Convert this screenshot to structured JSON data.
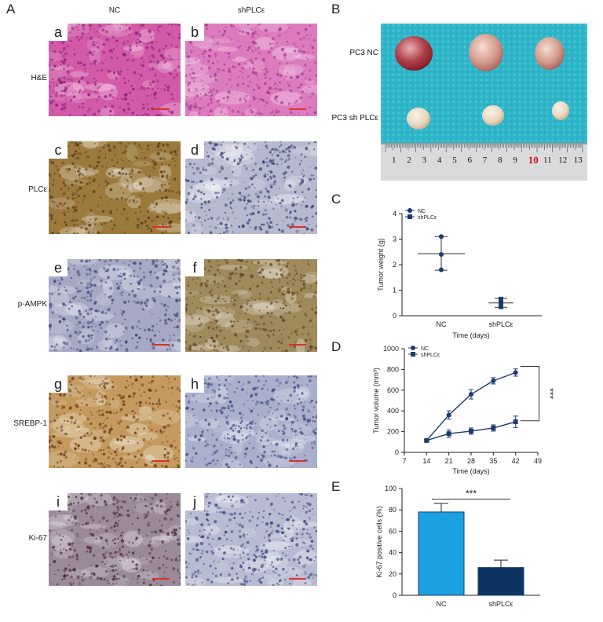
{
  "panel_labels": {
    "A": "A",
    "B": "B",
    "C": "C",
    "D": "D",
    "E": "E"
  },
  "column_headers": {
    "nc": "NC",
    "sh": "shPLCε"
  },
  "rows": [
    {
      "label": "H&E",
      "left": "a",
      "right": "b",
      "colors": {
        "left_base": "#d25aa8",
        "right_base": "#dc7cbe",
        "left_spot": "#8a1f7a",
        "right_spot": "#a43a8f"
      }
    },
    {
      "label": "PLCε",
      "left": "c",
      "right": "d",
      "colors": {
        "left_base": "#9c7a3c",
        "right_base": "#b7b9cf",
        "left_spot": "#5a3a1c",
        "right_spot": "#34406e"
      }
    },
    {
      "label": "p-AMPK",
      "left": "e",
      "right": "f",
      "colors": {
        "left_base": "#a6a8c4",
        "right_base": "#9f8a5c",
        "left_spot": "#3a4478",
        "right_spot": "#5c3f1e"
      }
    },
    {
      "label": "SREBP-1",
      "left": "g",
      "right": "h",
      "colors": {
        "left_base": "#c49a5e",
        "right_base": "#aab0cc",
        "left_spot": "#6a3c16",
        "right_spot": "#3a4680"
      }
    },
    {
      "label": "Ki-67",
      "left": "i",
      "right": "j",
      "colors": {
        "left_base": "#9b8a9a",
        "right_base": "#b9bbd2",
        "left_spot": "#4a2a3a",
        "right_spot": "#39457a"
      }
    }
  ],
  "photo": {
    "label_nc": "PC3 NC",
    "label_sh": "PC3 sh PLCε",
    "ruler_numbers": [
      "1",
      "2",
      "3",
      "4",
      "5",
      "6",
      "7",
      "8",
      "9",
      "10",
      "11",
      "12",
      "13"
    ],
    "background_color": "#2fb6c9"
  },
  "chart_data": [
    {
      "panel": "C",
      "type": "scatter",
      "ylabel": "Tumor weight (g)",
      "xlabel": "Time (days)",
      "categories": [
        "NC",
        "shPLCε"
      ],
      "ylim": [
        0,
        4
      ],
      "yticks": [
        "0",
        "1",
        "2",
        "3",
        "4"
      ],
      "series": [
        {
          "name": "NC",
          "points": [
            3.1,
            2.4,
            1.8
          ],
          "mean": 2.43,
          "sd_low": 1.78,
          "sd_high": 3.1,
          "marker": "circle"
        },
        {
          "name": "shPLCε",
          "points": [
            0.65,
            0.5,
            0.35
          ],
          "mean": 0.5,
          "sd_low": 0.33,
          "sd_high": 0.68,
          "marker": "square"
        }
      ],
      "legend_position": "top-left",
      "colors": {
        "series": "#1c3a6e"
      }
    },
    {
      "panel": "D",
      "type": "line",
      "ylabel": "Tumor volume (mm³)",
      "xlabel": "Time (days)",
      "x": [
        14,
        21,
        28,
        35,
        42
      ],
      "xlim": [
        7,
        49
      ],
      "xticks": [
        "7",
        "14",
        "21",
        "28",
        "35",
        "42",
        "49"
      ],
      "ylim": [
        0,
        1000
      ],
      "yticks": [
        "0",
        "200",
        "400",
        "600",
        "800",
        "1000"
      ],
      "series": [
        {
          "name": "NC",
          "values": [
            115,
            360,
            560,
            690,
            770
          ],
          "errors": [
            10,
            40,
            45,
            30,
            35
          ],
          "marker": "circle"
        },
        {
          "name": "shPLCε",
          "values": [
            115,
            180,
            205,
            235,
            295
          ],
          "errors": [
            10,
            35,
            30,
            30,
            55
          ],
          "marker": "square"
        }
      ],
      "significance": "***",
      "legend_position": "top-left",
      "colors": {
        "series": "#1c3a6e"
      }
    },
    {
      "panel": "E",
      "type": "bar",
      "ylabel": "Ki-67 positive cells (%)",
      "categories": [
        "NC",
        "shPLCε"
      ],
      "values": [
        78,
        26
      ],
      "errors": [
        8,
        7
      ],
      "ylim": [
        0,
        100
      ],
      "yticks": [
        "0",
        "20",
        "40",
        "60",
        "80",
        "100"
      ],
      "significance": "***",
      "colors": {
        "NC": "#1ba0e2",
        "shPLCε": "#0d3461",
        "outline": "#1c3a6e"
      }
    }
  ]
}
